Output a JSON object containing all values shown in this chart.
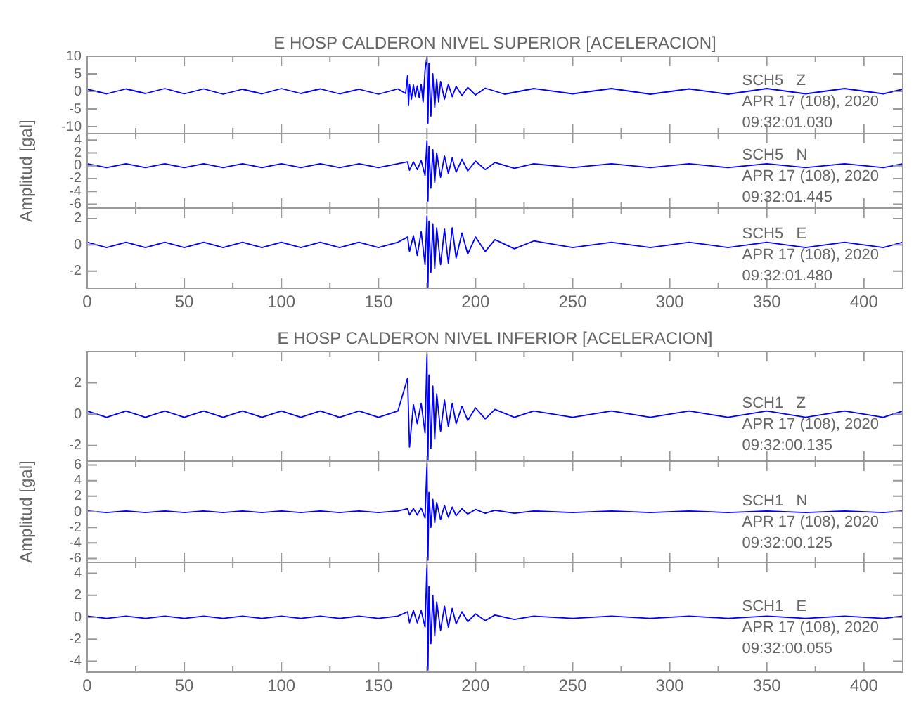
{
  "chart_data": [
    {
      "type": "line",
      "title": "E HOSP CALDERON NIVEL SUPERIOR [ACELERACION]",
      "xlim": [
        0,
        420
      ],
      "xticks": [
        0,
        {
          "value": 25,
          "label": null
        },
        50,
        {
          "value": 75,
          "label": null
        },
        100,
        {
          "value": 125,
          "label": null
        },
        150,
        {
          "value": 175,
          "label": null
        },
        200,
        {
          "value": 225,
          "label": null
        },
        250,
        {
          "value": 275,
          "label": null
        },
        300,
        {
          "value": 325,
          "label": null
        },
        350,
        {
          "value": 375,
          "label": null
        },
        400
      ],
      "ylim": [
        -12,
        10
      ],
      "yticks": [
        -10,
        -5,
        0,
        5,
        10
      ],
      "tick_labels": "y",
      "annotations": [
        "SCH5   Z",
        "APR 17 (108), 2020",
        "09:32:01.030"
      ],
      "series": [
        {
          "color": "#0000ff",
          "x": [
            0,
            10,
            20,
            30,
            40,
            50,
            60,
            70,
            80,
            90,
            100,
            110,
            120,
            130,
            140,
            150,
            160,
            164,
            165,
            165.5,
            166,
            167,
            168,
            169,
            170,
            171,
            172,
            173,
            174,
            175,
            175.5,
            176,
            177,
            178,
            179,
            180,
            181,
            182,
            184,
            186,
            188,
            190,
            193,
            196,
            200,
            205,
            215,
            230,
            250,
            270,
            290,
            310,
            330,
            350,
            370,
            390,
            410,
            420
          ],
          "values": [
            0.6,
            -0.7,
            0.7,
            -0.6,
            0.8,
            -0.7,
            0.7,
            -0.8,
            0.6,
            -0.7,
            0.8,
            -0.6,
            0.7,
            -0.7,
            0.6,
            -0.8,
            0.7,
            -0.6,
            4.5,
            -4,
            2,
            -2.2,
            1.8,
            -1.5,
            1.5,
            -1.8,
            2,
            -3,
            6,
            10,
            -9,
            8,
            -7,
            5,
            -4.5,
            3.5,
            -3,
            2.8,
            -2.2,
            2,
            -1.5,
            1.4,
            -1.2,
            1.1,
            -1,
            0.9,
            -0.8,
            0.8,
            -0.7,
            0.8,
            -0.8,
            0.7,
            -0.8,
            0.8,
            -0.7,
            0.8,
            -0.7,
            0.6
          ]
        }
      ]
    },
    {
      "type": "line",
      "ylabel": "Amplitud [gal]",
      "xlim": [
        0,
        420
      ],
      "xticks": [
        0,
        {
          "value": 25,
          "label": null
        },
        50,
        {
          "value": 75,
          "label": null
        },
        100,
        {
          "value": 125,
          "label": null
        },
        150,
        {
          "value": 175,
          "label": null
        },
        200,
        {
          "value": 225,
          "label": null
        },
        250,
        {
          "value": 275,
          "label": null
        },
        300,
        {
          "value": 325,
          "label": null
        },
        350,
        {
          "value": 375,
          "label": null
        },
        400
      ],
      "ylim": [
        -6.6,
        5
      ],
      "yticks": [
        -6,
        -4,
        -2,
        0,
        2,
        4
      ],
      "tick_labels": "y",
      "annotations": [
        "SCH5   N",
        "APR 17 (108), 2020",
        "09:32:01.445"
      ],
      "series": [
        {
          "color": "#0000ff",
          "x": [
            0,
            10,
            20,
            30,
            40,
            50,
            60,
            70,
            80,
            90,
            100,
            110,
            120,
            130,
            140,
            150,
            160,
            165,
            166,
            168,
            170,
            172,
            174,
            175,
            175.5,
            176,
            177,
            178,
            179,
            180,
            182,
            184,
            186,
            188,
            190,
            193,
            196,
            200,
            205,
            210,
            220,
            230,
            250,
            270,
            290,
            310,
            330,
            350,
            370,
            390,
            410,
            420
          ],
          "values": [
            0.3,
            -0.3,
            0.3,
            -0.3,
            0.3,
            -0.3,
            0.3,
            -0.3,
            0.3,
            -0.3,
            0.3,
            -0.3,
            0.3,
            -0.3,
            0.3,
            -0.3,
            0.3,
            0.6,
            -0.7,
            0.6,
            -0.6,
            0.8,
            -1.5,
            3.9,
            -5.5,
            3,
            -3.5,
            2.5,
            -2.6,
            2,
            -1.8,
            1.5,
            -1.2,
            1.2,
            -1,
            1,
            -0.8,
            0.7,
            -0.6,
            0.5,
            -0.4,
            0.3,
            -0.3,
            0.3,
            -0.3,
            0.3,
            -0.3,
            0.3,
            -0.3,
            0.3,
            -0.3,
            0.3
          ]
        }
      ]
    },
    {
      "type": "line",
      "xlim": [
        0,
        420
      ],
      "xticks": [
        0,
        {
          "value": 25,
          "label": null
        },
        50,
        {
          "value": 75,
          "label": null
        },
        100,
        {
          "value": 125,
          "label": null
        },
        150,
        {
          "value": 175,
          "label": null
        },
        200,
        {
          "value": 225,
          "label": null
        },
        250,
        {
          "value": 275,
          "label": null
        },
        300,
        {
          "value": 325,
          "label": null
        },
        350,
        {
          "value": 375,
          "label": null
        },
        400
      ],
      "ylim": [
        -3.3,
        2.8
      ],
      "yticks": [
        -2,
        0,
        2
      ],
      "annotations": [
        "SCH5   E",
        "APR 17 (108), 2020",
        "09:32:01.480"
      ],
      "series": [
        {
          "color": "#0000ff",
          "x": [
            0,
            10,
            20,
            30,
            40,
            50,
            60,
            70,
            80,
            90,
            100,
            110,
            120,
            130,
            140,
            150,
            160,
            165,
            166,
            168,
            170,
            172,
            174,
            175,
            175.5,
            176,
            177,
            178,
            179,
            180,
            182,
            184,
            186,
            188,
            190,
            193,
            196,
            200,
            205,
            210,
            220,
            230,
            250,
            270,
            290,
            310,
            330,
            350,
            370,
            390,
            410,
            420
          ],
          "values": [
            0.2,
            -0.2,
            0.2,
            -0.2,
            0.2,
            -0.2,
            0.2,
            -0.2,
            0.2,
            -0.2,
            0.2,
            -0.2,
            0.2,
            -0.2,
            0.2,
            -0.2,
            0.2,
            0.6,
            -0.5,
            0.7,
            -0.8,
            1,
            -1.5,
            2.2,
            -3.2,
            1.8,
            -2.1,
            1.6,
            -1.8,
            1.3,
            -1.5,
            1.2,
            -1.4,
            1.3,
            -1,
            0.9,
            -0.7,
            0.6,
            -0.5,
            0.4,
            -0.3,
            0.3,
            -0.2,
            0.2,
            -0.2,
            0.2,
            -0.2,
            0.2,
            -0.2,
            0.2,
            -0.2,
            0.2
          ]
        }
      ]
    },
    {
      "type": "line",
      "title": "E HOSP CALDERON NIVEL INFERIOR [ACELERACION]",
      "xlim": [
        0,
        420
      ],
      "xticks": [
        0,
        {
          "value": 25,
          "label": null
        },
        50,
        {
          "value": 75,
          "label": null
        },
        100,
        {
          "value": 125,
          "label": null
        },
        150,
        {
          "value": 175,
          "label": null
        },
        200,
        {
          "value": 225,
          "label": null
        },
        250,
        {
          "value": 275,
          "label": null
        },
        300,
        {
          "value": 325,
          "label": null
        },
        350,
        {
          "value": 375,
          "label": null
        },
        400
      ],
      "ylim": [
        -3,
        4
      ],
      "yticks": [
        -2,
        0,
        2
      ],
      "tick_labels": "y",
      "annotations": [
        "SCH1   Z",
        "APR 17 (108), 2020",
        "09:32:00.135"
      ],
      "series": [
        {
          "color": "#0000ff",
          "x": [
            0,
            10,
            20,
            30,
            40,
            50,
            60,
            70,
            80,
            90,
            100,
            110,
            120,
            130,
            140,
            150,
            160,
            165,
            166,
            168,
            170,
            172,
            174,
            175,
            175.5,
            176,
            177,
            178,
            179,
            180,
            182,
            184,
            186,
            188,
            190,
            193,
            196,
            200,
            205,
            210,
            220,
            230,
            250,
            270,
            290,
            310,
            330,
            350,
            370,
            390,
            410,
            420
          ],
          "values": [
            0.2,
            -0.2,
            0.2,
            -0.2,
            0.2,
            -0.2,
            0.2,
            -0.2,
            0.2,
            -0.2,
            0.2,
            -0.2,
            0.2,
            -0.2,
            0.2,
            -0.2,
            0.2,
            2.3,
            -2.1,
            0.6,
            -0.6,
            0.7,
            -1.2,
            3.8,
            -3,
            2.5,
            -2.2,
            1.8,
            -1.6,
            1.3,
            -1.1,
            0.9,
            -0.8,
            0.7,
            -0.6,
            0.5,
            -0.4,
            0.4,
            -0.3,
            0.3,
            -0.2,
            0.2,
            -0.2,
            0.2,
            -0.2,
            0.2,
            -0.2,
            0.2,
            -0.2,
            0.2,
            -0.2,
            0.2
          ]
        }
      ]
    },
    {
      "type": "line",
      "ylabel": "Amplitud [gal]",
      "xlim": [
        0,
        420
      ],
      "xticks": [
        0,
        {
          "value": 25,
          "label": null
        },
        50,
        {
          "value": 75,
          "label": null
        },
        100,
        {
          "value": 125,
          "label": null
        },
        150,
        {
          "value": 175,
          "label": null
        },
        200,
        {
          "value": 225,
          "label": null
        },
        250,
        {
          "value": 275,
          "label": null
        },
        300,
        {
          "value": 325,
          "label": null
        },
        350,
        {
          "value": 375,
          "label": null
        },
        400
      ],
      "ylim": [
        -6.5,
        6.5
      ],
      "yticks": [
        -6,
        -4,
        -2,
        0,
        2,
        4,
        6
      ],
      "tick_labels": "y",
      "annotations": [
        "SCH1   N",
        "APR 17 (108), 2020",
        "09:32:00.125"
      ],
      "series": [
        {
          "color": "#0000ff",
          "x": [
            0,
            10,
            20,
            30,
            40,
            50,
            60,
            70,
            80,
            90,
            100,
            110,
            120,
            130,
            140,
            150,
            160,
            165,
            166,
            168,
            170,
            172,
            174,
            175,
            175.5,
            176,
            177,
            178,
            179,
            180,
            182,
            184,
            186,
            188,
            190,
            193,
            196,
            200,
            205,
            210,
            220,
            230,
            250,
            270,
            290,
            310,
            330,
            350,
            370,
            390,
            410,
            420
          ],
          "values": [
            0.1,
            -0.1,
            0.1,
            -0.1,
            0.1,
            -0.1,
            0.1,
            -0.1,
            0.1,
            -0.1,
            0.1,
            -0.1,
            0.1,
            -0.1,
            0.1,
            -0.1,
            0.1,
            0.4,
            -0.4,
            0.4,
            -0.4,
            0.5,
            -0.8,
            6.2,
            -6.2,
            2.5,
            -2,
            1.6,
            -1.4,
            1.2,
            -1,
            0.8,
            -0.7,
            0.6,
            -0.5,
            0.4,
            -0.3,
            0.3,
            -0.2,
            0.2,
            -0.2,
            0.1,
            -0.1,
            0.1,
            -0.1,
            0.1,
            -0.1,
            0.1,
            -0.1,
            0.1,
            -0.1,
            0.1
          ]
        }
      ]
    },
    {
      "type": "line",
      "xlim": [
        0,
        420
      ],
      "xticks": [
        0,
        {
          "value": 25,
          "label": null
        },
        50,
        {
          "value": 75,
          "label": null
        },
        100,
        {
          "value": 125,
          "label": null
        },
        150,
        {
          "value": 175,
          "label": null
        },
        200,
        {
          "value": 225,
          "label": null
        },
        250,
        {
          "value": 275,
          "label": null
        },
        300,
        {
          "value": 325,
          "label": null
        },
        350,
        {
          "value": 375,
          "label": null
        },
        400
      ],
      "ylim": [
        -5,
        5
      ],
      "yticks": [
        -4,
        -2,
        0,
        2,
        4
      ],
      "annotations": [
        "SCH1   E",
        "APR 17 (108), 2020",
        "09:32:00.055"
      ],
      "series": [
        {
          "color": "#0000ff",
          "x": [
            0,
            10,
            20,
            30,
            40,
            50,
            60,
            70,
            80,
            90,
            100,
            110,
            120,
            130,
            140,
            150,
            160,
            165,
            166,
            168,
            170,
            172,
            174,
            175,
            175.5,
            176,
            177,
            178,
            179,
            180,
            182,
            184,
            186,
            188,
            190,
            193,
            196,
            200,
            205,
            210,
            220,
            230,
            250,
            270,
            290,
            310,
            330,
            350,
            370,
            390,
            410,
            420
          ],
          "values": [
            0.1,
            -0.1,
            0.1,
            -0.1,
            0.1,
            -0.1,
            0.1,
            -0.1,
            0.1,
            -0.1,
            0.1,
            -0.1,
            0.1,
            -0.1,
            0.1,
            -0.1,
            0.1,
            0.5,
            -0.5,
            0.6,
            -0.5,
            0.6,
            -0.9,
            4.8,
            -4.8,
            2.8,
            -2.4,
            2,
            -1.7,
            1.4,
            -1.2,
            1,
            -0.9,
            0.8,
            -0.6,
            0.5,
            -0.4,
            0.3,
            -0.3,
            0.2,
            -0.2,
            0.1,
            -0.1,
            0.1,
            -0.1,
            0.1,
            -0.1,
            0.1,
            -0.1,
            0.1,
            -0.1,
            0.1
          ]
        }
      ]
    }
  ]
}
